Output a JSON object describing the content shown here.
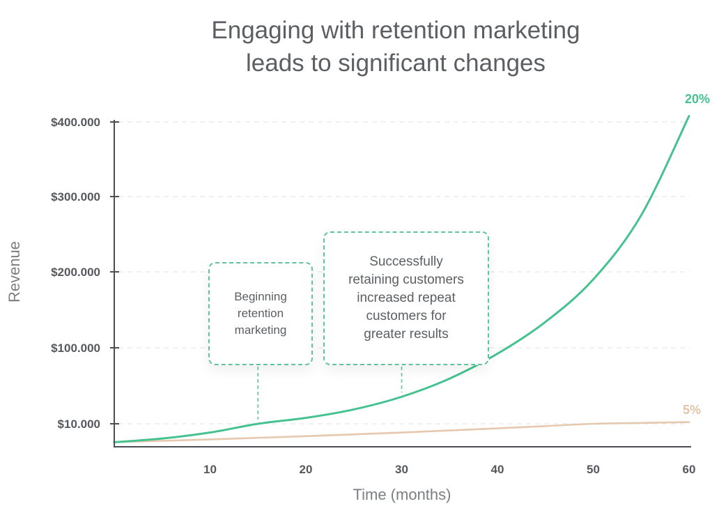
{
  "title": [
    "Engaging with retention marketing",
    "leads to significant changes"
  ],
  "annotations": [
    {
      "text": "Beginning retention marketing",
      "lines": [
        "Beginning",
        "retention",
        "marketing"
      ],
      "x": 15
    },
    {
      "text": "Successfully retaining customers increased repeat customers for greater results",
      "lines": [
        "Successfully",
        "retaining customers",
        "increased repeat",
        "customers for",
        "greater results"
      ],
      "x": 30
    }
  ],
  "chart_data": {
    "type": "line",
    "title": "Engaging with retention marketing leads to significant changes",
    "xlabel": "Time (months)",
    "ylabel": "Revenue",
    "xlim": [
      0,
      60
    ],
    "ylim": [
      0,
      400000
    ],
    "x_ticks": [
      10,
      20,
      30,
      40,
      50,
      60
    ],
    "y_ticks": [
      {
        "value": 10000,
        "label": "$10.000"
      },
      {
        "value": 100000,
        "label": "$100.000"
      },
      {
        "value": 200000,
        "label": "$200.000"
      },
      {
        "value": 300000,
        "label": "$300.000"
      },
      {
        "value": 400000,
        "label": "$400.000"
      }
    ],
    "grid": true,
    "x": [
      0,
      5,
      10,
      15,
      20,
      25,
      30,
      35,
      40,
      45,
      50,
      55,
      60
    ],
    "series": [
      {
        "name": "20%",
        "color": "#45c290",
        "values": [
          2000,
          3600,
          6200,
          10000,
          17000,
          27000,
          42000,
          63500,
          93000,
          134000,
          190000,
          275000,
          408000
        ]
      },
      {
        "name": "5%",
        "color": "#e5c8ae",
        "values": [
          2000,
          2600,
          3200,
          3900,
          4600,
          5400,
          6200,
          7100,
          8000,
          9000,
          10000,
          11000,
          12000
        ]
      }
    ]
  }
}
